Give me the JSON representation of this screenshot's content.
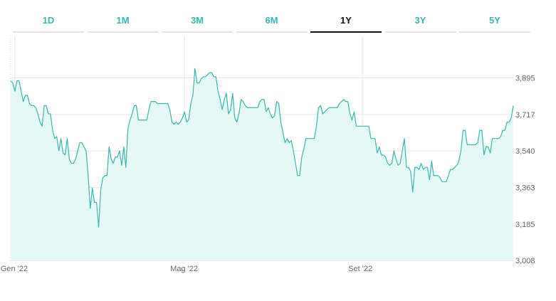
{
  "tabs": [
    {
      "label": "1D",
      "active": false
    },
    {
      "label": "1M",
      "active": false
    },
    {
      "label": "3M",
      "active": false
    },
    {
      "label": "6M",
      "active": false
    },
    {
      "label": "1Y",
      "active": true
    },
    {
      "label": "3Y",
      "active": false
    },
    {
      "label": "5Y",
      "active": false
    }
  ],
  "colors": {
    "accent": "#38b7ae",
    "fill": "#e4f8f6",
    "active_tab": "#111111",
    "grid": "#e5e5e5"
  },
  "chart_data": {
    "type": "area",
    "title": "",
    "xlabel": "",
    "ylabel": "",
    "grid": true,
    "y_ticks": [
      3008,
      3185,
      3363,
      3540,
      3717,
      3895
    ],
    "y_tick_labels": [
      "3,008",
      "3,185",
      "3,363",
      "3,540",
      "3,717",
      "3,895"
    ],
    "ylim": [
      3008,
      4100
    ],
    "x_ticks": [
      {
        "label": "Gen '22",
        "index": 2
      },
      {
        "label": "Mag '22",
        "index": 83
      },
      {
        "label": "Set '22",
        "index": 168
      }
    ],
    "values": [
      3880,
      3870,
      3830,
      3880,
      3880,
      3830,
      3780,
      3810,
      3810,
      3770,
      3760,
      3760,
      3750,
      3720,
      3680,
      3660,
      3760,
      3760,
      3720,
      3720,
      3640,
      3600,
      3610,
      3540,
      3600,
      3530,
      3520,
      3600,
      3500,
      3480,
      3480,
      3500,
      3540,
      3580,
      3580,
      3560,
      3540,
      3420,
      3260,
      3360,
      3290,
      3290,
      3170,
      3350,
      3410,
      3420,
      3420,
      3560,
      3500,
      3480,
      3510,
      3510,
      3540,
      3470,
      3560,
      3460,
      3650,
      3690,
      3720,
      3760,
      3760,
      3690,
      3690,
      3690,
      3690,
      3690,
      3740,
      3780,
      3780,
      3780,
      3770,
      3770,
      3770,
      3770,
      3770,
      3770,
      3740,
      3680,
      3670,
      3680,
      3670,
      3680,
      3700,
      3730,
      3680,
      3690,
      3770,
      3810,
      3940,
      3870,
      3870,
      3890,
      3900,
      3900,
      3910,
      3920,
      3920,
      3900,
      3900,
      3830,
      3790,
      3740,
      3790,
      3820,
      3720,
      3740,
      3820,
      3700,
      3680,
      3720,
      3790,
      3780,
      3760,
      3750,
      3750,
      3750,
      3750,
      3750,
      3750,
      3780,
      3790,
      3790,
      3730,
      3750,
      3720,
      3700,
      3710,
      3780,
      3770,
      3680,
      3630,
      3580,
      3600,
      3580,
      3590,
      3540,
      3480,
      3420,
      3420,
      3510,
      3550,
      3600,
      3600,
      3600,
      3600,
      3600,
      3660,
      3750,
      3760,
      3720,
      3730,
      3740,
      3750,
      3750,
      3750,
      3750,
      3750,
      3770,
      3780,
      3790,
      3780,
      3780,
      3720,
      3690,
      3730,
      3660,
      3660,
      3660,
      3660,
      3660,
      3660,
      3660,
      3600,
      3600,
      3600,
      3530,
      3560,
      3520,
      3520,
      3510,
      3480,
      3470,
      3480,
      3540,
      3500,
      3470,
      3480,
      3540,
      3600,
      3460,
      3460,
      3440,
      3340,
      3460,
      3460,
      3450,
      3480,
      3450,
      3460,
      3460,
      3400,
      3490,
      3420,
      3420,
      3420,
      3410,
      3390,
      3390,
      3390,
      3420,
      3450,
      3450,
      3460,
      3470,
      3490,
      3540,
      3640,
      3640,
      3570,
      3570,
      3570,
      3570,
      3570,
      3580,
      3640,
      3640,
      3520,
      3560,
      3560,
      3530,
      3600,
      3600,
      3600,
      3600,
      3610,
      3640,
      3640,
      3680,
      3680,
      3700,
      3760
    ]
  }
}
